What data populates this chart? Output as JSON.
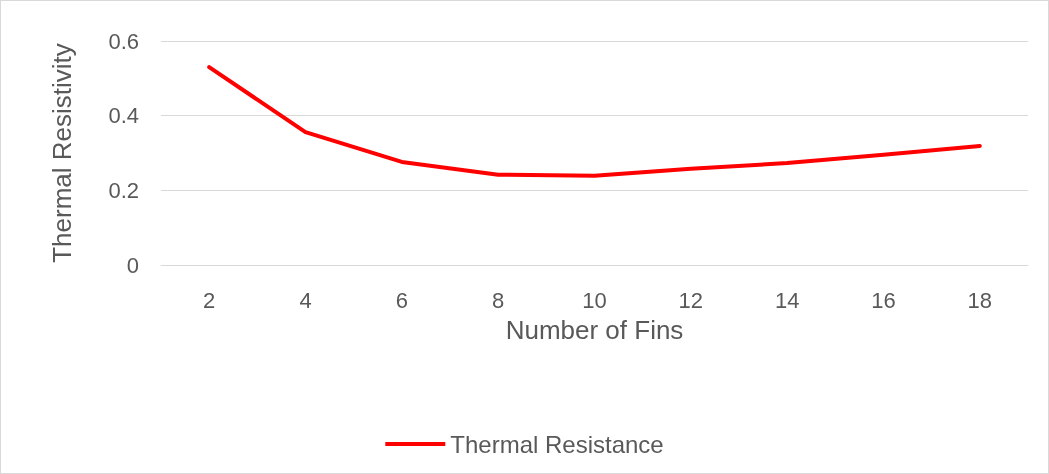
{
  "chart_data": {
    "type": "line",
    "xlabel": "Number of Fins",
    "ylabel": "Thermal Resistivity",
    "categories": [
      "2",
      "4",
      "6",
      "8",
      "10",
      "12",
      "14",
      "16",
      "18"
    ],
    "series": [
      {
        "name": "Thermal Resistance",
        "color": "#ff0000",
        "values": [
          0.53,
          0.356,
          0.276,
          0.242,
          0.239,
          0.258,
          0.273,
          0.295,
          0.319
        ]
      }
    ],
    "ylim": [
      0,
      0.6
    ],
    "yticks": [
      0,
      0.2,
      0.4,
      0.6
    ],
    "grid": "y",
    "legend": "bottom",
    "marker": "none",
    "line_style": "solid"
  }
}
